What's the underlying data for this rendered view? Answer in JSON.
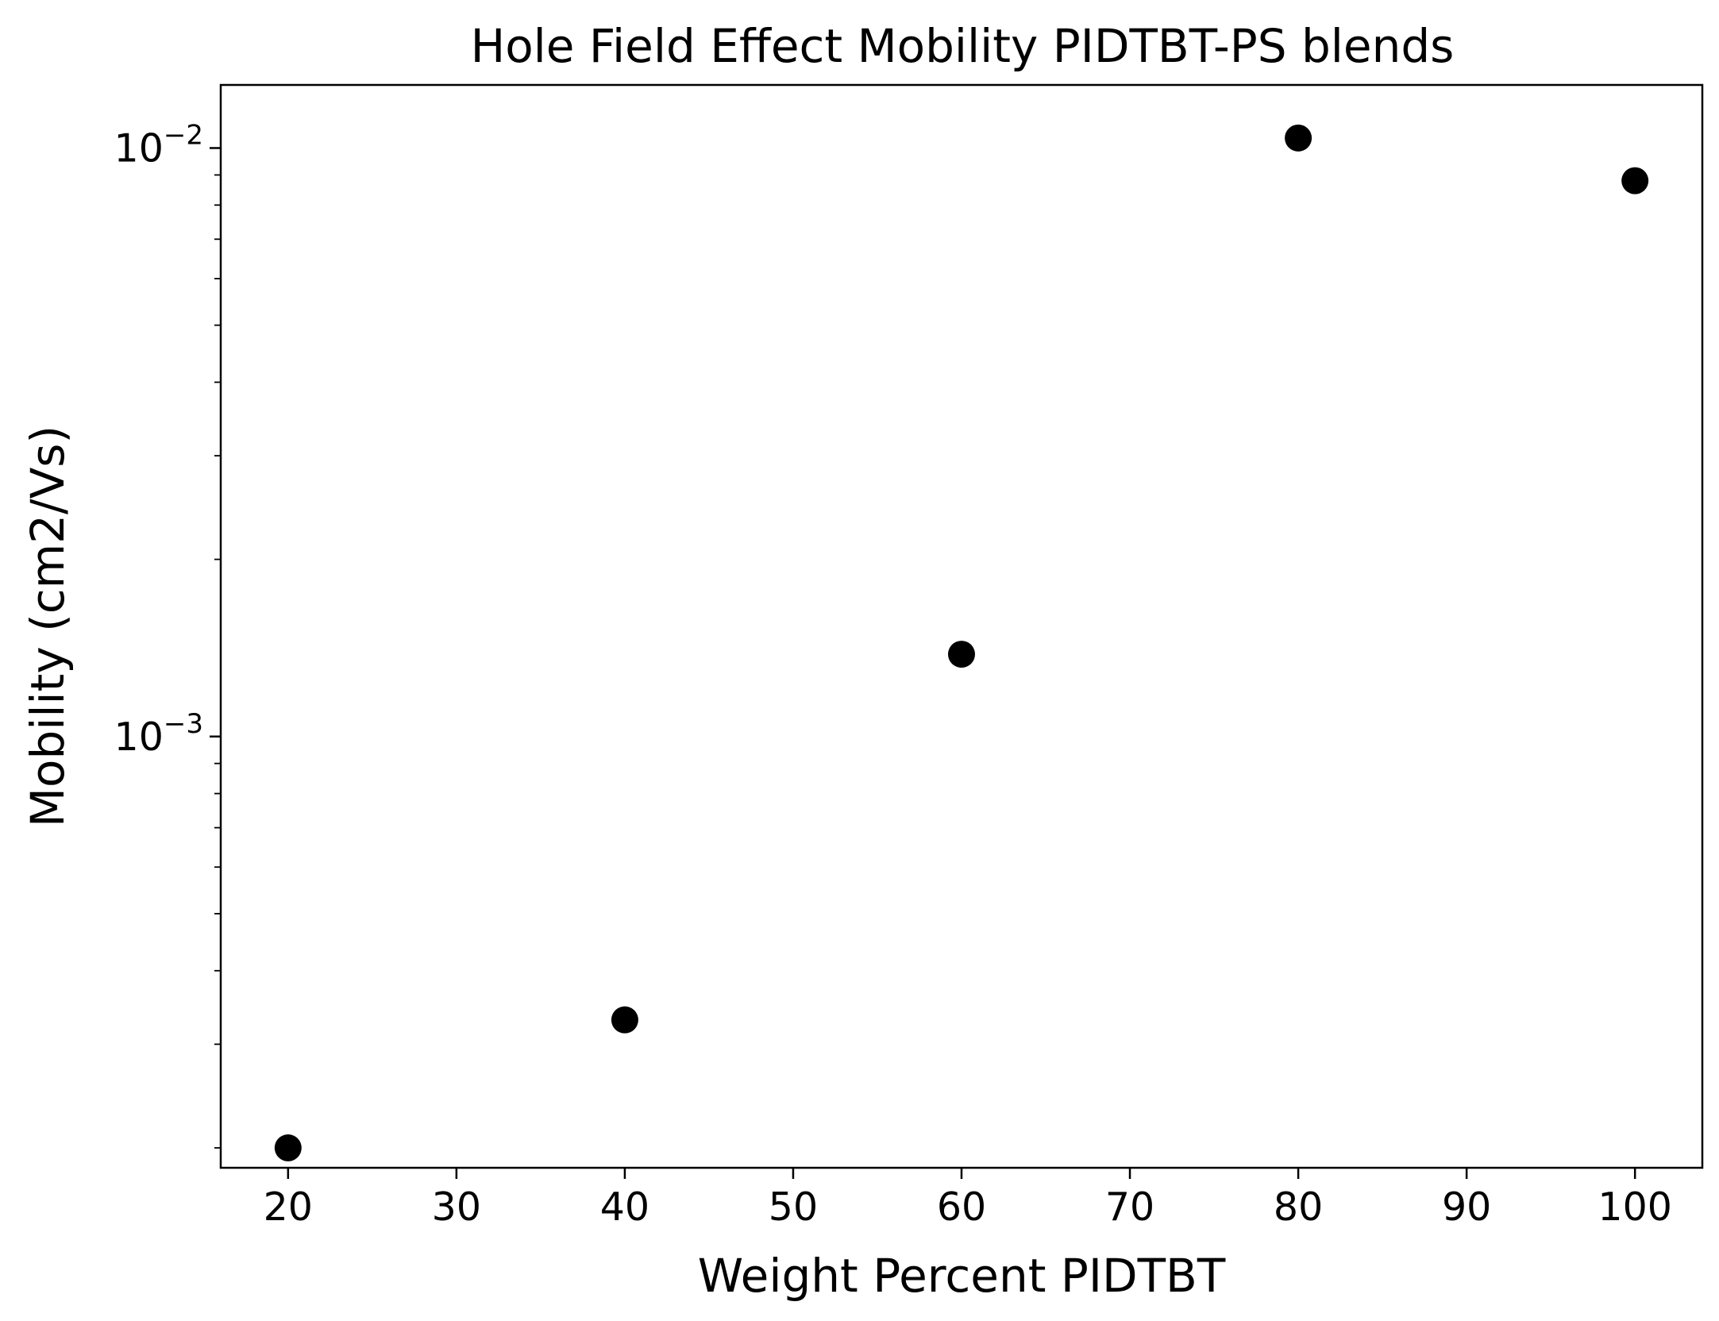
{
  "chart_data": {
    "type": "scatter",
    "title": "Hole Field Effect Mobility PIDTBT-PS blends",
    "xlabel": "Weight Percent PIDTBT",
    "ylabel": "Mobility (cm2/Vs)",
    "x": [
      20,
      40,
      60,
      80,
      100
    ],
    "y": [
      0.0002,
      0.00033,
      0.00138,
      0.0104,
      0.0088
    ],
    "xlim": [
      16,
      104
    ],
    "ylim": [
      0.000185,
      0.0128
    ],
    "yscale": "log",
    "xticks": [
      20,
      30,
      40,
      50,
      60,
      70,
      80,
      90,
      100
    ],
    "xtick_labels": [
      "20",
      "30",
      "40",
      "50",
      "60",
      "70",
      "80",
      "90",
      "100"
    ],
    "yticks": [
      {
        "value": 0.01,
        "base": "10",
        "exp": "−2"
      },
      {
        "value": 0.001,
        "base": "10",
        "exp": "−3"
      }
    ],
    "grid": false,
    "marker_color": "#000000"
  }
}
